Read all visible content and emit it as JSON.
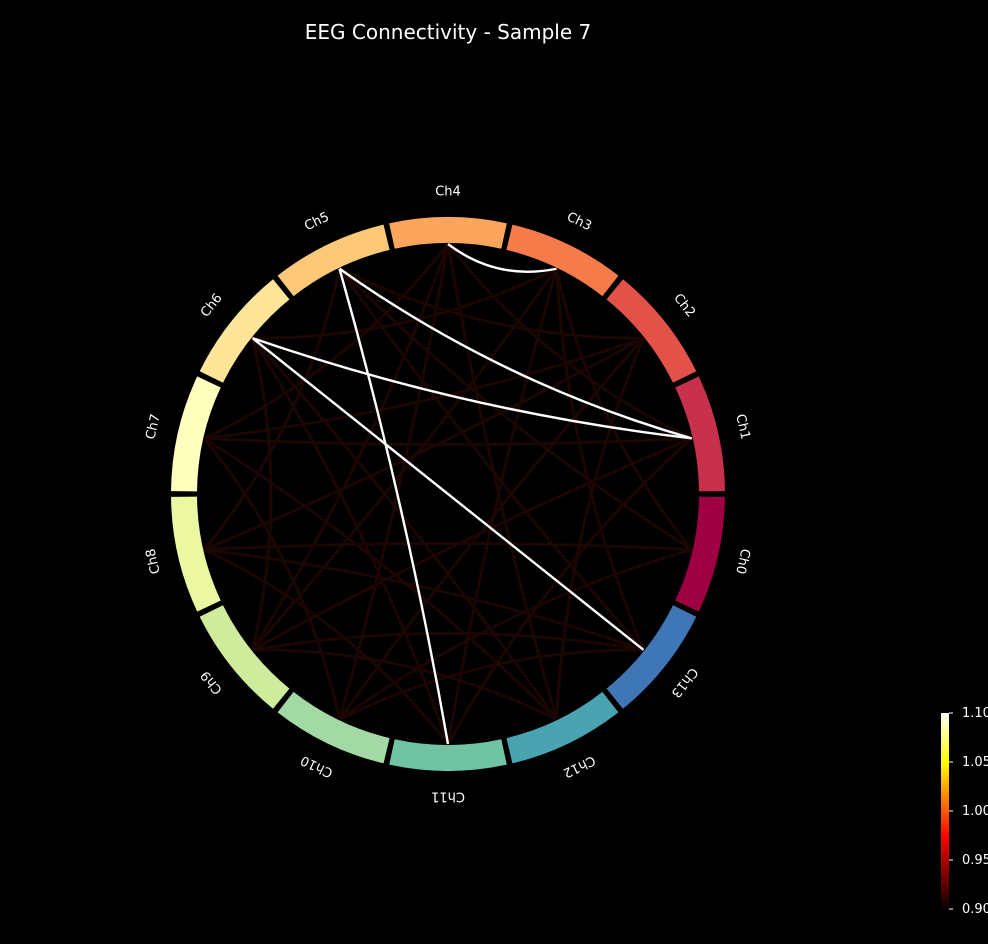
{
  "chart_data": {
    "type": "chord",
    "title": "EEG Connectivity - Sample 7",
    "nodes": [
      {
        "name": "Ch0",
        "color": "#9e0142"
      },
      {
        "name": "Ch1",
        "color": "#c8314c"
      },
      {
        "name": "Ch2",
        "color": "#e25249"
      },
      {
        "name": "Ch3",
        "color": "#f67b4a"
      },
      {
        "name": "Ch4",
        "color": "#fca55d"
      },
      {
        "name": "Ch5",
        "color": "#fdc877"
      },
      {
        "name": "Ch6",
        "color": "#fee597"
      },
      {
        "name": "Ch7",
        "color": "#ffffbe"
      },
      {
        "name": "Ch8",
        "color": "#ecf7a2"
      },
      {
        "name": "Ch9",
        "color": "#cfec9d"
      },
      {
        "name": "Ch10",
        "color": "#a3d9a4"
      },
      {
        "name": "Ch11",
        "color": "#70c4a4"
      },
      {
        "name": "Ch12",
        "color": "#4aa3b1"
      },
      {
        "name": "Ch13",
        "color": "#3f77b6"
      }
    ],
    "strong_edges": [
      {
        "source": "Ch3",
        "target": "Ch4",
        "value": 1.1
      },
      {
        "source": "Ch5",
        "target": "Ch1",
        "value": 1.1
      },
      {
        "source": "Ch6",
        "target": "Ch1",
        "value": 1.1
      },
      {
        "source": "Ch6",
        "target": "Ch13",
        "value": 1.1
      },
      {
        "source": "Ch5",
        "target": "Ch11",
        "value": 1.1
      }
    ],
    "weak_edges": [
      [
        "Ch0",
        "Ch5"
      ],
      [
        "Ch0",
        "Ch8"
      ],
      [
        "Ch0",
        "Ch10"
      ],
      [
        "Ch1",
        "Ch4"
      ],
      [
        "Ch1",
        "Ch7"
      ],
      [
        "Ch1",
        "Ch9"
      ],
      [
        "Ch1",
        "Ch11"
      ],
      [
        "Ch2",
        "Ch5"
      ],
      [
        "Ch2",
        "Ch8"
      ],
      [
        "Ch2",
        "Ch10"
      ],
      [
        "Ch2",
        "Ch12"
      ],
      [
        "Ch3",
        "Ch6"
      ],
      [
        "Ch3",
        "Ch9"
      ],
      [
        "Ch3",
        "Ch11"
      ],
      [
        "Ch3",
        "Ch13"
      ],
      [
        "Ch4",
        "Ch7"
      ],
      [
        "Ch4",
        "Ch10"
      ],
      [
        "Ch4",
        "Ch12"
      ],
      [
        "Ch5",
        "Ch8"
      ],
      [
        "Ch5",
        "Ch13"
      ],
      [
        "Ch6",
        "Ch9"
      ],
      [
        "Ch6",
        "Ch11"
      ],
      [
        "Ch7",
        "Ch10"
      ],
      [
        "Ch7",
        "Ch12"
      ],
      [
        "Ch8",
        "Ch11"
      ],
      [
        "Ch8",
        "Ch13"
      ],
      [
        "Ch9",
        "Ch12"
      ],
      [
        "Ch10",
        "Ch13"
      ],
      [
        "Ch0",
        "Ch3"
      ],
      [
        "Ch2",
        "Ch7"
      ],
      [
        "Ch4",
        "Ch9"
      ],
      [
        "Ch6",
        "Ch12"
      ],
      [
        "Ch1",
        "Ch6"
      ],
      [
        "Ch9",
        "Ch13"
      ]
    ],
    "weak_edge_color": "#1c0604",
    "colorbar": {
      "colormap": "hot",
      "range": [
        0.9,
        1.1
      ],
      "ticks": [
        "0.90",
        "0.95",
        "1.00",
        "1.05",
        "1.10"
      ]
    }
  }
}
